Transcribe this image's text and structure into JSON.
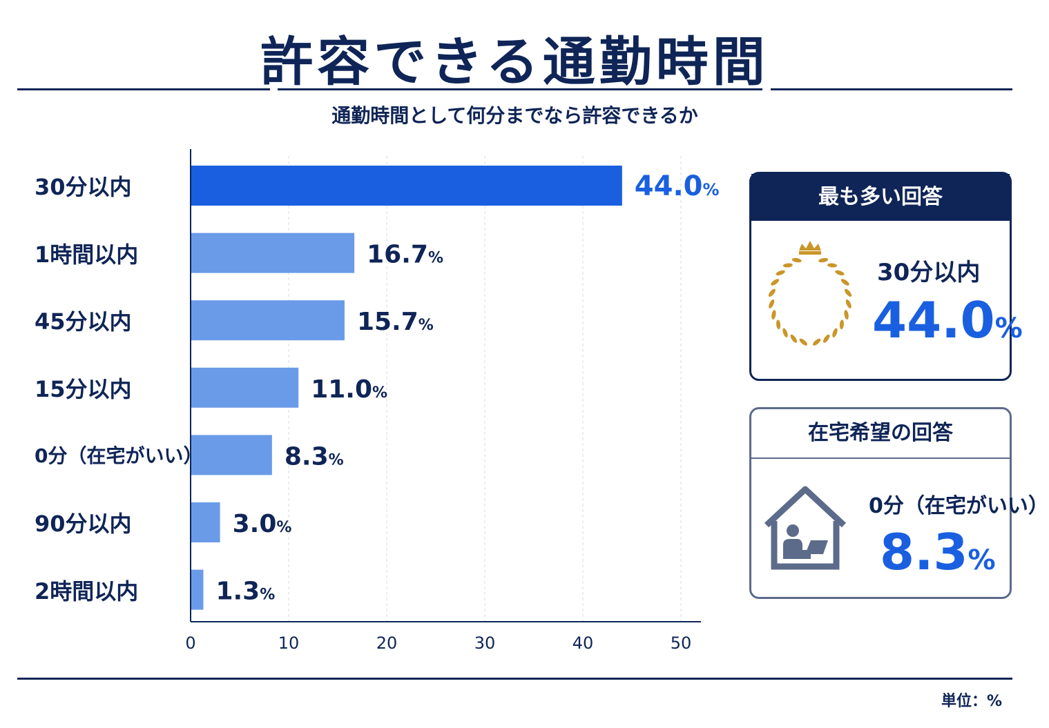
{
  "title": "許容できる通勤時間",
  "subtitle": "通勤時間として何分までなら許容できるか",
  "unit_note": "単位：%",
  "colors": {
    "navy": "#0f2557",
    "accent": "#1a5fe0",
    "bar": "#6a9be8",
    "top_bar": "#1a5fe0",
    "gold": "#c9962a",
    "house": "#5c6b8a"
  },
  "chart_data": {
    "type": "bar",
    "orientation": "horizontal",
    "categories": [
      "30分以内",
      "1時間以内",
      "45分以内",
      "15分以内",
      "0分（在宅がいい）",
      "90分以内",
      "2時間以内"
    ],
    "values": [
      44.0,
      16.7,
      15.7,
      11.0,
      8.3,
      3.0,
      1.3
    ],
    "value_labels": [
      "44.0",
      "16.7",
      "15.7",
      "11.0",
      "8.3",
      "3.0",
      "1.3"
    ],
    "value_suffix": "%",
    "xlim": [
      0,
      50
    ],
    "xticks": [
      "0",
      "10",
      "20",
      "30",
      "40",
      "50"
    ],
    "xtick_values": [
      0,
      10,
      20,
      30,
      40,
      50
    ],
    "grid": true,
    "highlight_index": 0
  },
  "top_card": {
    "header": "最も多い回答",
    "label": "30分以内",
    "value": "44.0",
    "suffix": "%",
    "icon": "laurel-crown-icon"
  },
  "home_card": {
    "header": "在宅希望の回答",
    "label": "0分（在宅がいい）",
    "value": "8.3",
    "suffix": "%",
    "icon": "house-remote-work-icon"
  }
}
